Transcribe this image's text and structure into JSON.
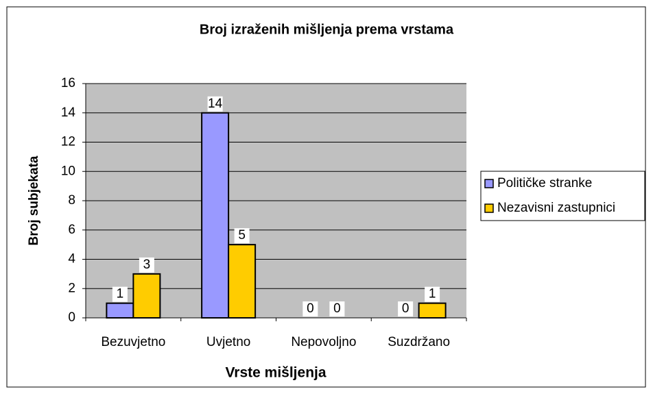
{
  "chart_data": {
    "type": "bar",
    "title": "Broj izraženih mišljenja prema vrstama",
    "x_label": "Vrste mišljenja",
    "y_label": "Broj subjekata",
    "categories": [
      "Bezuvjetno",
      "Uvjetno",
      "Nepovoljno",
      "Suzdržano"
    ],
    "series": [
      {
        "name": "Političke stranke",
        "color": "#9999ff",
        "values": [
          1,
          14,
          0,
          0
        ]
      },
      {
        "name": "Nezavisni zastupnici",
        "color": "#ffcc00",
        "values": [
          3,
          5,
          0,
          1
        ]
      }
    ],
    "ylim": [
      0,
      16
    ],
    "yticks": [
      0,
      2,
      4,
      6,
      8,
      10,
      12,
      14,
      16
    ],
    "grid": true,
    "legend": "right"
  }
}
